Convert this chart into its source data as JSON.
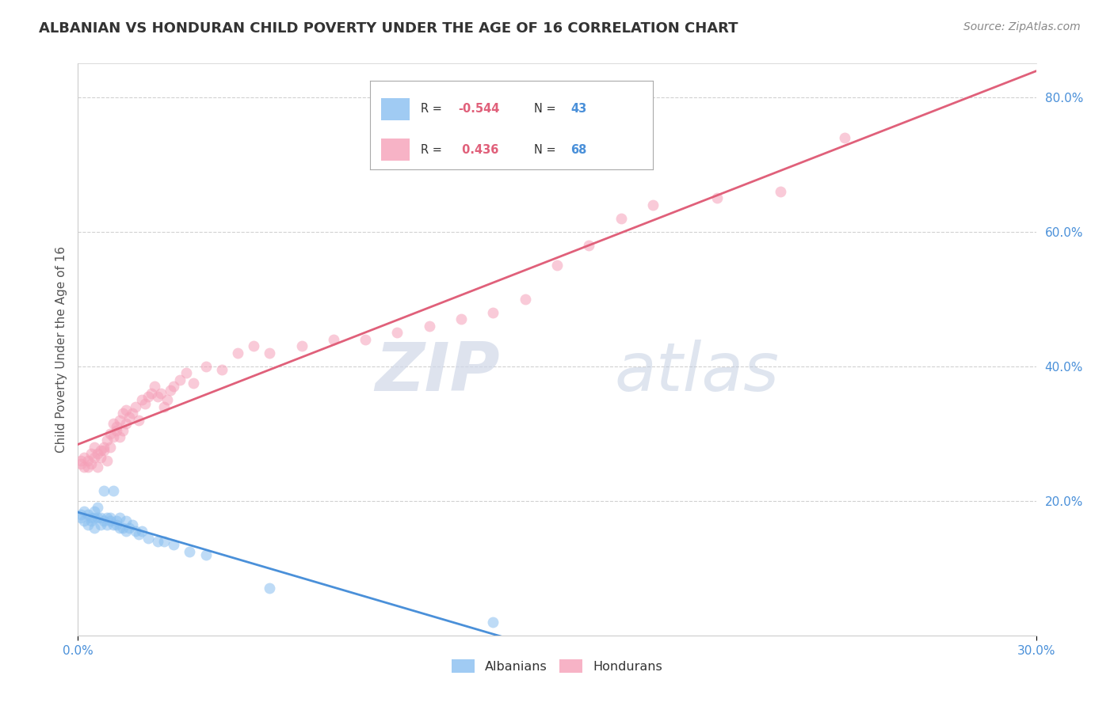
{
  "title": "ALBANIAN VS HONDURAN CHILD POVERTY UNDER THE AGE OF 16 CORRELATION CHART",
  "source": "Source: ZipAtlas.com",
  "ylabel": "Child Poverty Under the Age of 16",
  "albanian_color": "#89bff0",
  "honduran_color": "#f5a0b8",
  "albanian_line_color": "#4a90d9",
  "honduran_line_color": "#e0607a",
  "background_color": "#ffffff",
  "grid_color": "#cccccc",
  "watermark_zip": "ZIP",
  "watermark_atlas": "atlas",
  "albanian_x": [
    0.001,
    0.001,
    0.002,
    0.002,
    0.003,
    0.003,
    0.004,
    0.004,
    0.005,
    0.005,
    0.005,
    0.006,
    0.006,
    0.007,
    0.007,
    0.008,
    0.008,
    0.009,
    0.009,
    0.01,
    0.01,
    0.011,
    0.011,
    0.012,
    0.012,
    0.013,
    0.013,
    0.014,
    0.015,
    0.015,
    0.016,
    0.017,
    0.018,
    0.019,
    0.02,
    0.022,
    0.025,
    0.027,
    0.03,
    0.035,
    0.04,
    0.06,
    0.13
  ],
  "albanian_y": [
    0.175,
    0.18,
    0.17,
    0.185,
    0.165,
    0.18,
    0.175,
    0.17,
    0.185,
    0.16,
    0.175,
    0.19,
    0.175,
    0.175,
    0.165,
    0.215,
    0.17,
    0.165,
    0.175,
    0.175,
    0.17,
    0.165,
    0.215,
    0.165,
    0.17,
    0.175,
    0.16,
    0.16,
    0.155,
    0.17,
    0.16,
    0.165,
    0.155,
    0.15,
    0.155,
    0.145,
    0.14,
    0.14,
    0.135,
    0.125,
    0.12,
    0.07,
    0.02
  ],
  "honduran_x": [
    0.001,
    0.001,
    0.002,
    0.002,
    0.003,
    0.003,
    0.004,
    0.004,
    0.005,
    0.005,
    0.006,
    0.006,
    0.007,
    0.007,
    0.008,
    0.008,
    0.009,
    0.009,
    0.01,
    0.01,
    0.011,
    0.011,
    0.012,
    0.012,
    0.013,
    0.013,
    0.014,
    0.014,
    0.015,
    0.015,
    0.016,
    0.017,
    0.018,
    0.019,
    0.02,
    0.021,
    0.022,
    0.023,
    0.024,
    0.025,
    0.026,
    0.027,
    0.028,
    0.029,
    0.03,
    0.032,
    0.034,
    0.036,
    0.04,
    0.045,
    0.05,
    0.055,
    0.06,
    0.07,
    0.08,
    0.09,
    0.1,
    0.11,
    0.12,
    0.13,
    0.14,
    0.15,
    0.16,
    0.17,
    0.18,
    0.2,
    0.22,
    0.24
  ],
  "honduran_y": [
    0.26,
    0.255,
    0.25,
    0.265,
    0.26,
    0.25,
    0.27,
    0.255,
    0.265,
    0.28,
    0.25,
    0.27,
    0.265,
    0.275,
    0.28,
    0.275,
    0.26,
    0.29,
    0.3,
    0.28,
    0.295,
    0.315,
    0.305,
    0.31,
    0.32,
    0.295,
    0.305,
    0.33,
    0.315,
    0.335,
    0.325,
    0.33,
    0.34,
    0.32,
    0.35,
    0.345,
    0.355,
    0.36,
    0.37,
    0.355,
    0.36,
    0.34,
    0.35,
    0.365,
    0.37,
    0.38,
    0.39,
    0.375,
    0.4,
    0.395,
    0.42,
    0.43,
    0.42,
    0.43,
    0.44,
    0.44,
    0.45,
    0.46,
    0.47,
    0.48,
    0.5,
    0.55,
    0.58,
    0.62,
    0.64,
    0.65,
    0.66,
    0.74
  ],
  "xlim": [
    0.0,
    0.3
  ],
  "ylim": [
    0.0,
    0.85
  ],
  "ytick_positions": [
    0.2,
    0.4,
    0.6,
    0.8
  ],
  "ytick_labels": [
    "20.0%",
    "40.0%",
    "60.0%",
    "80.0%"
  ],
  "title_fontsize": 13,
  "source_fontsize": 10,
  "axis_label_fontsize": 11,
  "tick_fontsize": 11,
  "marker_size": 100,
  "marker_alpha": 0.55,
  "line_width": 2.0
}
